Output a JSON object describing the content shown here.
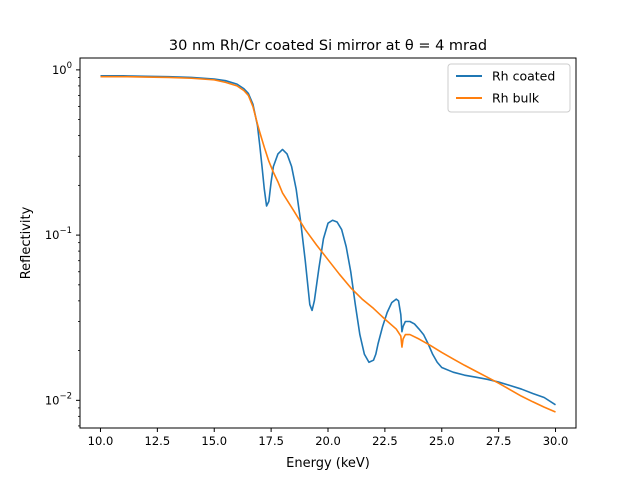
{
  "chart_data": {
    "type": "line",
    "title": "30 nm Rh/Cr coated Si mirror at θ = 4 mrad",
    "xlabel": "Energy (keV)",
    "ylabel": "Reflectivity",
    "xlim": [
      9.1,
      30.9
    ],
    "ylim": [
      0.0068,
      1.18
    ],
    "yscale": "log",
    "x_ticks": [
      10.0,
      12.5,
      15.0,
      17.5,
      20.0,
      22.5,
      25.0,
      27.5,
      30.0
    ],
    "x_tick_labels": [
      "10.0",
      "12.5",
      "15.0",
      "17.5",
      "20.0",
      "22.5",
      "25.0",
      "27.5",
      "30.0"
    ],
    "y_ticks": [
      0.01,
      0.1,
      1
    ],
    "y_tick_bases": [
      "10",
      "10",
      "10"
    ],
    "y_tick_exps": [
      "−2",
      "−1",
      "0"
    ],
    "grid": false,
    "legend_position": "top-right",
    "series": [
      {
        "name": "Rh coated",
        "color": "#1f77b4",
        "x": [
          10,
          11,
          12,
          13,
          14,
          15,
          15.5,
          16,
          16.3,
          16.5,
          16.7,
          16.9,
          17.0,
          17.1,
          17.2,
          17.3,
          17.4,
          17.5,
          17.6,
          17.8,
          18.0,
          18.2,
          18.4,
          18.6,
          18.8,
          19.0,
          19.2,
          19.3,
          19.4,
          19.6,
          19.8,
          20.0,
          20.2,
          20.4,
          20.6,
          20.8,
          21.0,
          21.2,
          21.4,
          21.6,
          21.8,
          22.0,
          22.1,
          22.2,
          22.4,
          22.6,
          22.8,
          23.0,
          23.1,
          23.2,
          23.25,
          23.3,
          23.4,
          23.6,
          23.8,
          24.0,
          24.2,
          24.4,
          24.6,
          24.8,
          25.0,
          25.5,
          26.0,
          26.5,
          27.0,
          27.5,
          28.0,
          28.5,
          29.0,
          29.5,
          30.0
        ],
        "y": [
          0.92,
          0.92,
          0.915,
          0.91,
          0.9,
          0.88,
          0.86,
          0.82,
          0.77,
          0.72,
          0.62,
          0.46,
          0.35,
          0.26,
          0.19,
          0.15,
          0.16,
          0.21,
          0.26,
          0.31,
          0.33,
          0.31,
          0.26,
          0.19,
          0.12,
          0.07,
          0.038,
          0.035,
          0.04,
          0.063,
          0.095,
          0.118,
          0.123,
          0.12,
          0.108,
          0.085,
          0.06,
          0.038,
          0.025,
          0.019,
          0.017,
          0.0175,
          0.019,
          0.022,
          0.028,
          0.034,
          0.039,
          0.041,
          0.04,
          0.033,
          0.026,
          0.028,
          0.03,
          0.03,
          0.029,
          0.027,
          0.025,
          0.022,
          0.019,
          0.017,
          0.0158,
          0.0148,
          0.0142,
          0.0138,
          0.0134,
          0.0129,
          0.0123,
          0.0117,
          0.011,
          0.0104,
          0.0094
        ]
      },
      {
        "name": "Rh bulk",
        "color": "#ff7f0e",
        "x": [
          10,
          11,
          12,
          13,
          14,
          15,
          15.5,
          16,
          16.3,
          16.5,
          16.7,
          16.9,
          17.0,
          17.2,
          17.4,
          17.6,
          17.8,
          18.0,
          18.5,
          19.0,
          19.5,
          20.0,
          20.5,
          21.0,
          21.5,
          22.0,
          22.5,
          23.0,
          23.2,
          23.25,
          23.3,
          23.4,
          23.6,
          24.0,
          24.5,
          25.0,
          25.5,
          26.0,
          26.5,
          27.0,
          27.5,
          28.0,
          28.5,
          29.0,
          29.5,
          30.0
        ],
        "y": [
          0.91,
          0.91,
          0.905,
          0.9,
          0.89,
          0.87,
          0.84,
          0.8,
          0.75,
          0.7,
          0.6,
          0.47,
          0.42,
          0.34,
          0.28,
          0.24,
          0.21,
          0.18,
          0.14,
          0.108,
          0.087,
          0.071,
          0.058,
          0.048,
          0.041,
          0.036,
          0.031,
          0.027,
          0.0245,
          0.021,
          0.0235,
          0.025,
          0.025,
          0.0235,
          0.0215,
          0.0195,
          0.0178,
          0.0163,
          0.015,
          0.0138,
          0.0127,
          0.0116,
          0.0106,
          0.0098,
          0.0091,
          0.0085
        ]
      }
    ]
  }
}
